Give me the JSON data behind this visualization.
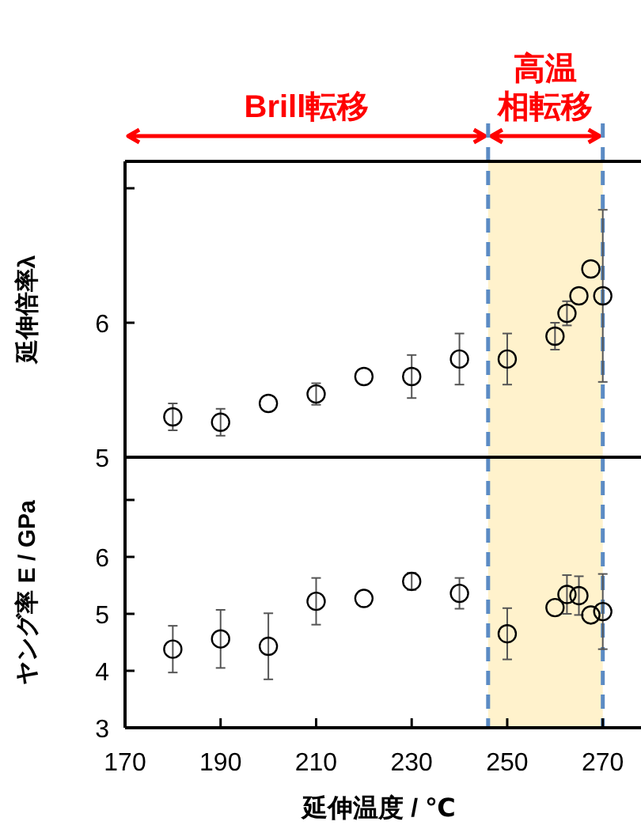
{
  "chart_data": [
    {
      "type": "scatter",
      "ylabel": "延伸倍率λ",
      "marker": "circle",
      "tick_labels": "y",
      "xlim": [
        170,
        278
      ],
      "ylim": [
        5,
        7.2
      ],
      "yticks": [
        5,
        6,
        {
          "value": 7,
          "label": null
        }
      ],
      "x": [
        180,
        190,
        200,
        210,
        220,
        230,
        240,
        250,
        260,
        262.5,
        265,
        267.5,
        270
      ],
      "series": [
        {
          "color": "#000000",
          "values": [
            5.3,
            5.26,
            5.4,
            5.47,
            5.6,
            5.6,
            5.73,
            5.73,
            5.9,
            6.07,
            6.2,
            6.4,
            6.2
          ],
          "errors": [
            0.1,
            0.1,
            null,
            0.08,
            null,
            0.16,
            0.19,
            0.19,
            0.1,
            0.09,
            null,
            null,
            0.64
          ]
        }
      ],
      "annotations": [
        "Brill転移",
        "高温相転移"
      ],
      "bands": [
        {
          "axis": "x",
          "from": 246,
          "to": 270,
          "color": "#fff2cc"
        }
      ],
      "ref_lines": [
        {
          "axis": "x",
          "value": 246,
          "color": "#5b8bc4",
          "line_style": "dashed"
        },
        {
          "axis": "x",
          "value": 270,
          "color": "#5b8bc4",
          "line_style": "dashed"
        }
      ]
    },
    {
      "type": "scatter",
      "ylabel": "ヤング率 E / GPa",
      "xlabel": "延伸温度 / ℃",
      "marker": "circle",
      "xlim": [
        170,
        278
      ],
      "xticks": [
        170,
        190,
        210,
        230,
        250,
        270
      ],
      "ylim": [
        3,
        7.75
      ],
      "yticks": [
        3,
        4,
        5,
        6,
        {
          "value": 7,
          "label": null
        }
      ],
      "x": [
        180,
        190,
        200,
        210,
        220,
        230,
        240,
        250,
        260,
        262.5,
        265,
        267.5,
        270
      ],
      "series": [
        {
          "color": "#000000",
          "values": [
            4.38,
            4.56,
            4.43,
            5.22,
            5.27,
            5.57,
            5.36,
            4.65,
            5.11,
            5.34,
            5.32,
            4.98,
            5.04
          ],
          "errors": [
            0.41,
            0.51,
            0.58,
            0.41,
            null,
            0.15,
            0.27,
            0.45,
            null,
            0.34,
            0.34,
            null,
            0.66
          ]
        }
      ],
      "bands": [
        {
          "axis": "x",
          "from": 246,
          "to": 270,
          "color": "#fff2cc"
        }
      ],
      "ref_lines": [
        {
          "axis": "x",
          "value": 246,
          "color": "#5b8bc4",
          "line_style": "dashed"
        },
        {
          "axis": "x",
          "value": 270,
          "color": "#5b8bc4",
          "line_style": "dashed"
        }
      ]
    }
  ]
}
